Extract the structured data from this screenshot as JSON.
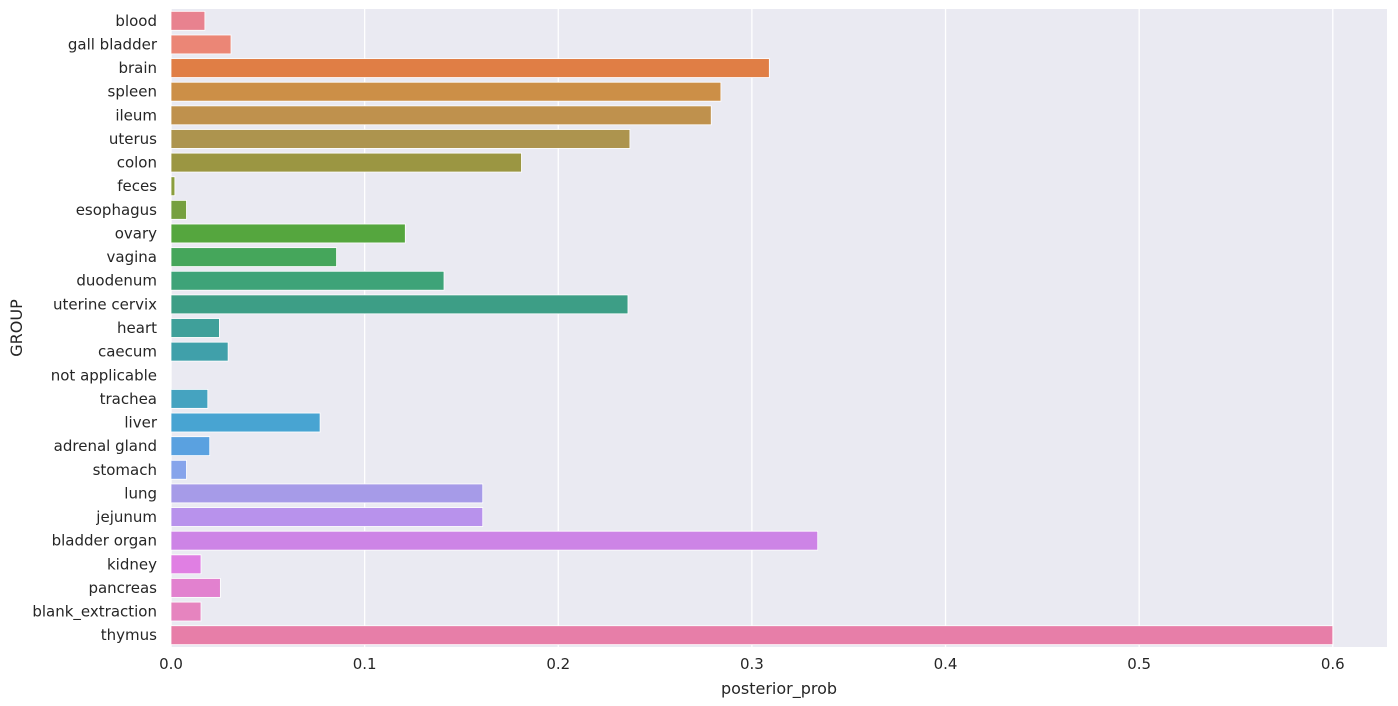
{
  "chart_data": {
    "type": "bar",
    "orientation": "horizontal",
    "xlabel": "posterior_prob",
    "ylabel": "GROUP",
    "xlim": [
      0,
      0.628
    ],
    "xticks": [
      0.0,
      0.1,
      0.2,
      0.3,
      0.4,
      0.5,
      0.6
    ],
    "xtick_labels": [
      "0.0",
      "0.1",
      "0.2",
      "0.3",
      "0.4",
      "0.5",
      "0.6"
    ],
    "grid": true,
    "background": "#eaeaf2",
    "grid_color": "#ffffff",
    "categories": [
      "blood",
      "gall bladder",
      "brain",
      "spleen",
      "ileum",
      "uterus",
      "colon",
      "feces",
      "esophagus",
      "ovary",
      "vagina",
      "duodenum",
      "uterine cervix",
      "heart",
      "caecum",
      "not applicable",
      "trachea",
      "liver",
      "adrenal gland",
      "stomach",
      "lung",
      "jejunum",
      "bladder organ",
      "kidney",
      "pancreas",
      "blank_extraction",
      "thymus"
    ],
    "values": [
      0.0175,
      0.031,
      0.309,
      0.284,
      0.279,
      0.237,
      0.181,
      0.002,
      0.008,
      0.121,
      0.0855,
      0.141,
      0.236,
      0.025,
      0.0295,
      0.0,
      0.019,
      0.077,
      0.02,
      0.008,
      0.161,
      0.161,
      0.334,
      0.0155,
      0.0255,
      0.0155,
      0.6
    ],
    "colors": [
      "#e8828f",
      "#eb8676",
      "#e07e45",
      "#cc8f47",
      "#bf914d",
      "#ad944e",
      "#9b9642",
      "#8b9e3e",
      "#76a03f",
      "#55a63e",
      "#45a65b",
      "#3ea378",
      "#3d9e86",
      "#3fa09a",
      "#40a0aa",
      "#44a2b8",
      "#45a3c0",
      "#48a4d2",
      "#5aa1e0",
      "#86a4eb",
      "#a69be8",
      "#b892ec",
      "#cd84e6",
      "#e07fe3",
      "#e281cf",
      "#e684bf",
      "#e77ea8"
    ]
  }
}
